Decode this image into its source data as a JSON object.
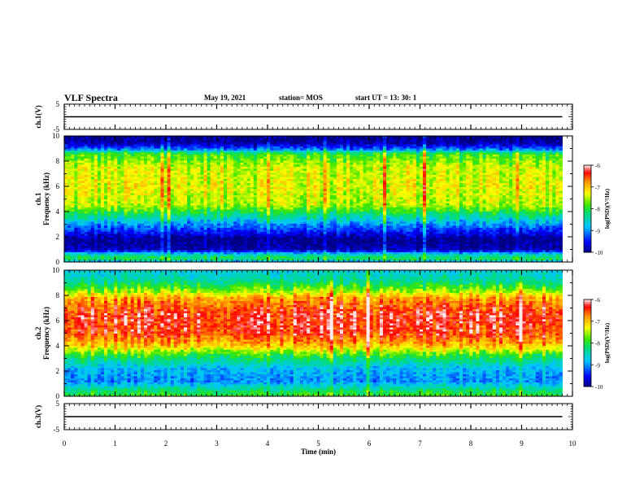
{
  "header": {
    "title": "VLF Spectra",
    "date": "May 19, 2021",
    "station": "station= MOS",
    "start": "start  UT  =   13: 30: 1"
  },
  "chart_data": [
    {
      "type": "line",
      "panel": "ch1-waveform",
      "ylabel": "ch.1(V)",
      "ylim": [
        -5,
        5
      ],
      "yticks": [
        5,
        -5
      ],
      "xlim": [
        0,
        10
      ],
      "series": [
        {
          "x": [
            0,
            9.8
          ],
          "y": [
            0,
            0
          ]
        }
      ]
    },
    {
      "type": "heatmap",
      "panel": "ch1-spectrogram",
      "ylabel": "ch.1\nFrequency (kHz)",
      "ylim": [
        0,
        10
      ],
      "yticks": [
        0,
        2,
        4,
        6,
        8,
        10
      ],
      "xlim": [
        0,
        10
      ],
      "data_xmax": 9.8,
      "colorbar": {
        "label": "log(PSD)(V²/Hz)",
        "range": [
          -10,
          -6
        ],
        "ticks": [
          -6,
          -7,
          -8,
          -9,
          -10
        ]
      },
      "band_profile": [
        {
          "f": 0.0,
          "level": -9.0
        },
        {
          "f": 0.3,
          "level": -8.0
        },
        {
          "f": 0.6,
          "level": -8.5
        },
        {
          "f": 1.0,
          "level": -9.8
        },
        {
          "f": 1.8,
          "level": -10.0
        },
        {
          "f": 2.4,
          "level": -9.5
        },
        {
          "f": 3.0,
          "level": -9.0
        },
        {
          "f": 3.6,
          "level": -8.4
        },
        {
          "f": 4.5,
          "level": -7.5
        },
        {
          "f": 6.0,
          "level": -7.3
        },
        {
          "f": 7.5,
          "level": -7.4
        },
        {
          "f": 8.6,
          "level": -7.9
        },
        {
          "f": 9.0,
          "level": -9.2
        },
        {
          "f": 9.5,
          "level": -9.9
        },
        {
          "f": 10.0,
          "level": -10.0
        }
      ]
    },
    {
      "type": "heatmap",
      "panel": "ch2-spectrogram",
      "ylabel": "ch.2\nFrequency (kHz)",
      "ylim": [
        0,
        10
      ],
      "yticks": [
        0,
        2,
        4,
        6,
        8,
        10
      ],
      "xlim": [
        0,
        10
      ],
      "data_xmax": 9.8,
      "colorbar": {
        "label": "log(PSD)(V²/Hz)",
        "range": [
          -10,
          -6
        ],
        "ticks": [
          -6,
          -7,
          -8,
          -9,
          -10
        ]
      },
      "band_profile": [
        {
          "f": 0.0,
          "level": -7.8
        },
        {
          "f": 0.5,
          "level": -8.2
        },
        {
          "f": 1.2,
          "level": -9.0
        },
        {
          "f": 2.2,
          "level": -8.8
        },
        {
          "f": 3.2,
          "level": -8.0
        },
        {
          "f": 4.0,
          "level": -7.0
        },
        {
          "f": 5.0,
          "level": -6.4
        },
        {
          "f": 6.5,
          "level": -6.3
        },
        {
          "f": 7.8,
          "level": -6.8
        },
        {
          "f": 8.6,
          "level": -7.8
        },
        {
          "f": 9.3,
          "level": -8.4
        },
        {
          "f": 10.0,
          "level": -8.6
        }
      ]
    },
    {
      "type": "line",
      "panel": "ch3-waveform",
      "ylabel": "ch.3(V)",
      "ylim": [
        -5,
        5
      ],
      "yticks": [
        5,
        -5
      ],
      "xlim": [
        0,
        10
      ],
      "xlabel": "Time (min)",
      "xticks": [
        0,
        1,
        2,
        3,
        4,
        5,
        6,
        7,
        8,
        9,
        10
      ],
      "series": [
        {
          "x": [
            0,
            9.8
          ],
          "y": [
            0,
            0
          ]
        }
      ]
    }
  ]
}
